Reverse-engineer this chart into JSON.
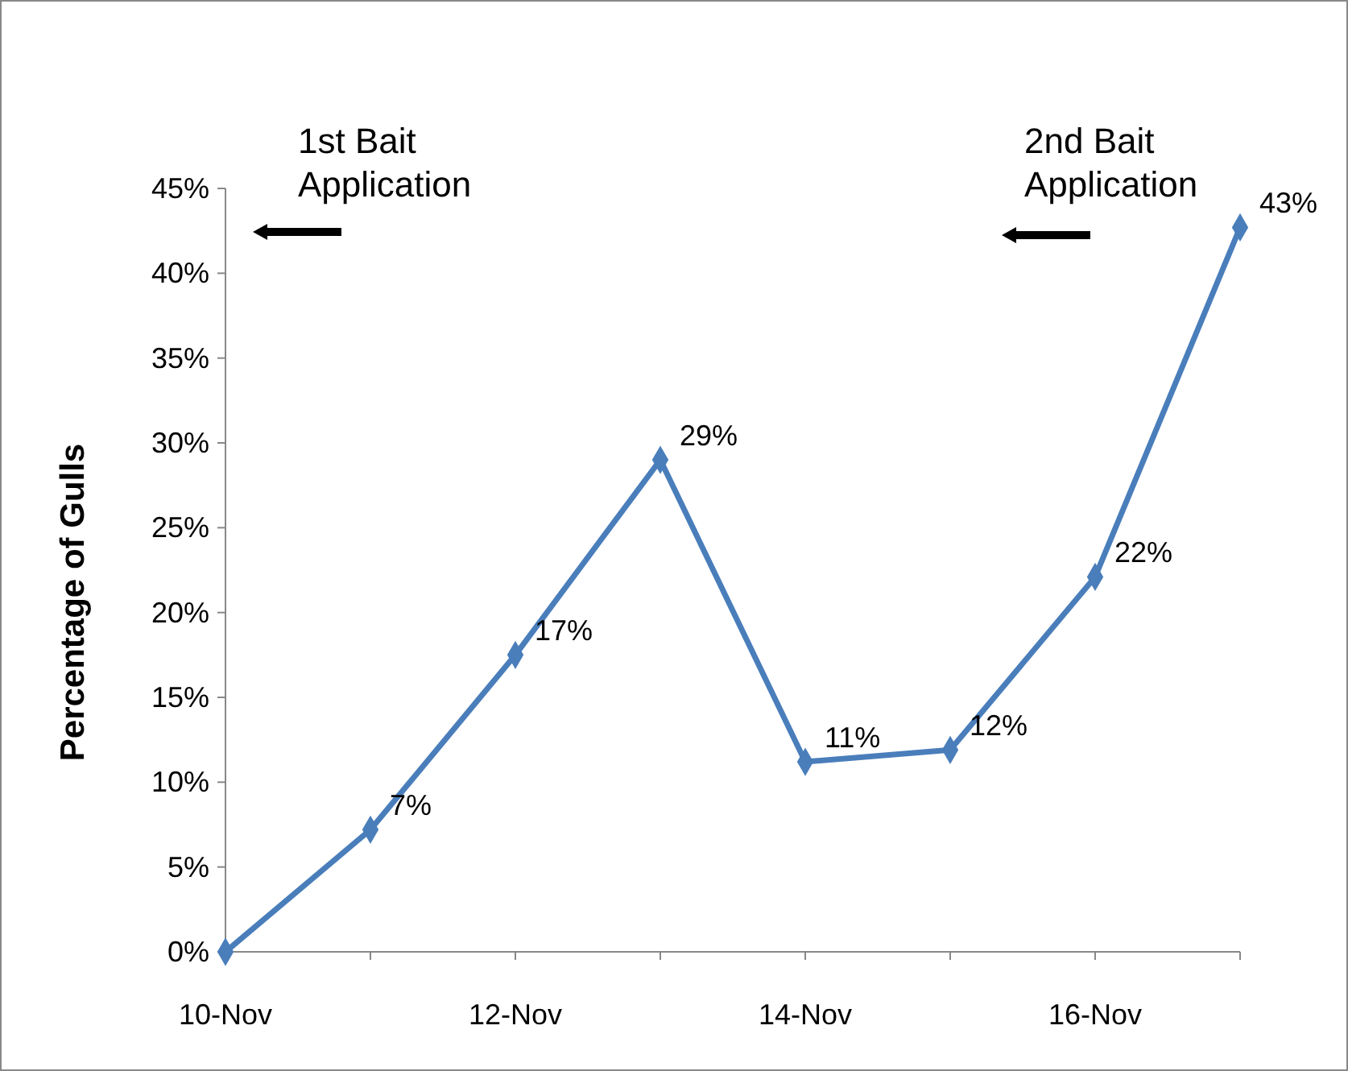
{
  "chart_data": {
    "type": "line",
    "ylabel": "Percentage of Gulls",
    "categories": [
      "10-Nov",
      null,
      "12-Nov",
      null,
      "14-Nov",
      null,
      "16-Nov",
      null
    ],
    "series": [
      {
        "color": "#4a7ebb",
        "values": [
          0,
          7.2,
          17.5,
          29,
          11.2,
          11.9,
          22.1,
          42.7
        ],
        "value_labels": [
          null,
          "7%",
          "17%",
          "29%",
          "11%",
          "12%",
          "22%",
          "43%"
        ]
      }
    ],
    "ylim": [
      0,
      45
    ],
    "yticks": [
      {
        "value": 0,
        "label": "0%"
      },
      {
        "value": 5,
        "label": "5%"
      },
      {
        "value": 10,
        "label": "10%"
      },
      {
        "value": 15,
        "label": "15%"
      },
      {
        "value": 20,
        "label": "20%"
      },
      {
        "value": 25,
        "label": "25%"
      },
      {
        "value": 30,
        "label": "30%"
      },
      {
        "value": 35,
        "label": "35%"
      },
      {
        "value": 40,
        "label": "40%"
      },
      {
        "value": 45,
        "label": "45%"
      }
    ],
    "marker": "diamond",
    "line_style": "solid",
    "annotations": [
      "1st Bait Application",
      "2nd Bait Application"
    ]
  }
}
